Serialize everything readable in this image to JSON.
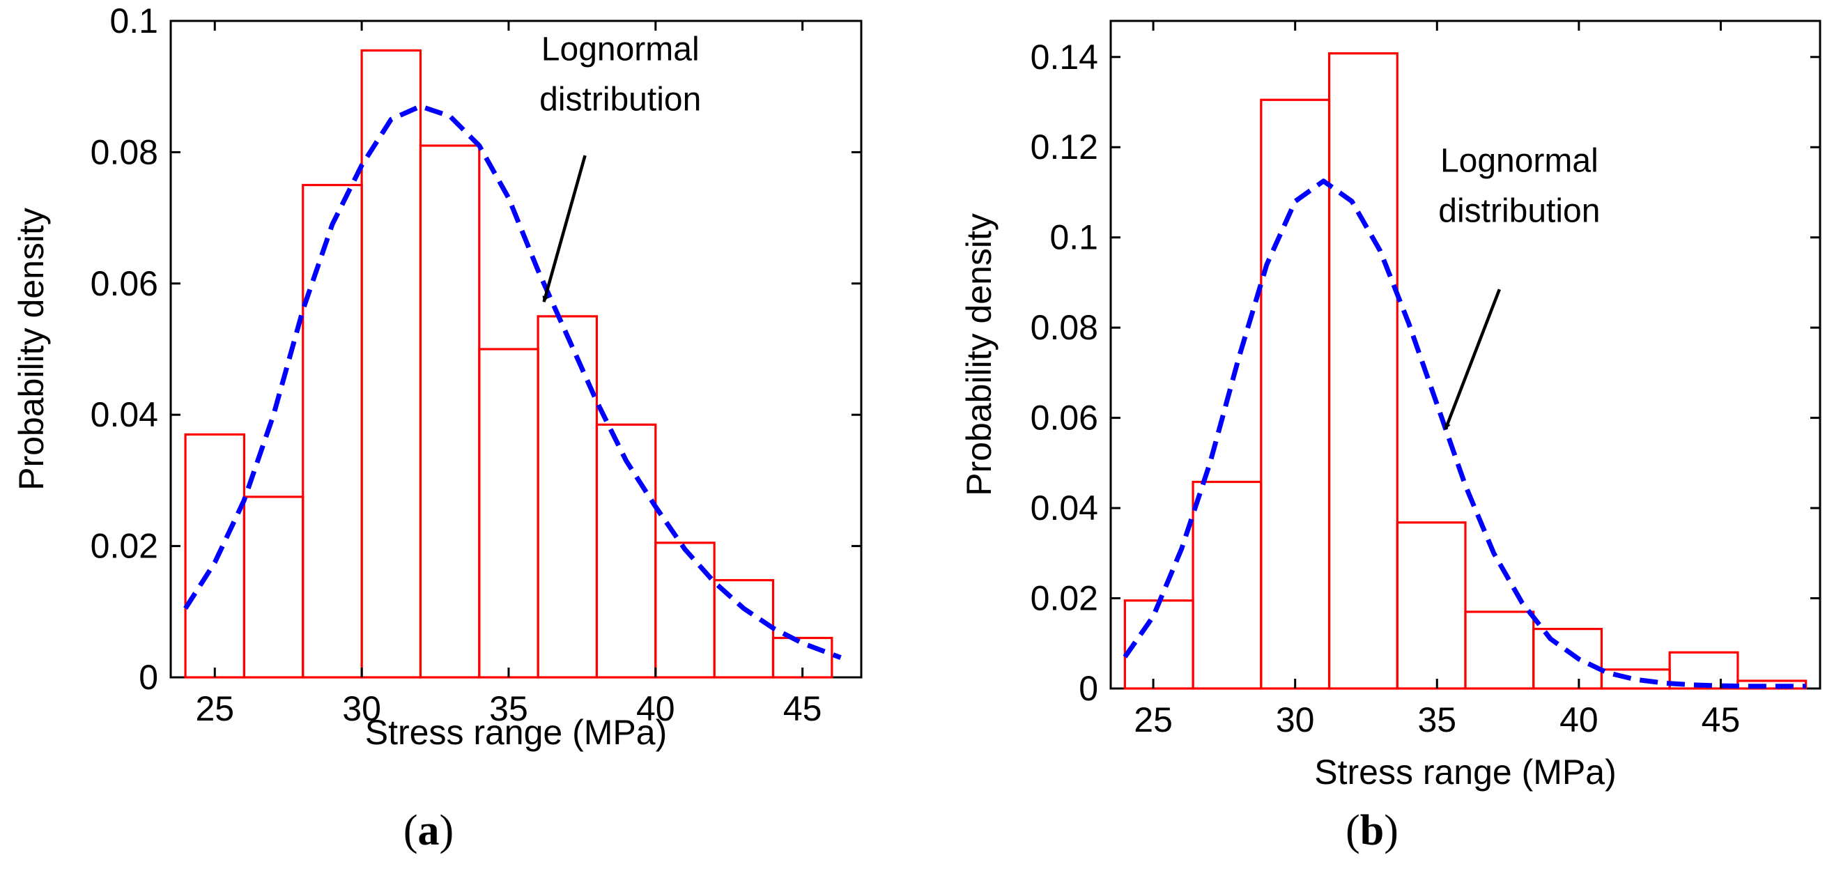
{
  "chart_data": [
    {
      "type": "bar",
      "subtitle": "a",
      "xlabel": "Stress range (MPa)",
      "ylabel": "Probability density",
      "bin_edges": [
        24,
        26,
        28,
        30,
        32,
        34,
        36,
        38,
        40,
        42,
        44,
        46
      ],
      "values": [
        0.037,
        0.0275,
        0.075,
        0.0955,
        0.081,
        0.05,
        0.055,
        0.0385,
        0.0205,
        0.0148,
        0.006
      ],
      "xlim": [
        23.5,
        47
      ],
      "ylim": [
        0,
        0.1
      ],
      "xticks": [
        25,
        30,
        35,
        40,
        45
      ],
      "xtick_labels": [
        "25",
        "30",
        "35",
        "40",
        "45"
      ],
      "yticks": [
        0,
        0.02,
        0.04,
        0.06,
        0.08,
        0.1
      ],
      "ytick_labels": [
        "0",
        "0.02",
        "0.04",
        "0.06",
        "0.08",
        "0.1"
      ],
      "curve": {
        "name": "Lognormal distribution",
        "x": [
          24,
          25,
          26,
          27,
          28,
          29,
          30,
          31,
          32,
          33,
          34,
          35,
          36,
          37,
          38,
          39,
          40,
          41,
          42,
          43,
          44,
          45,
          46.3
        ],
        "y": [
          0.0105,
          0.0175,
          0.027,
          0.04,
          0.056,
          0.069,
          0.078,
          0.085,
          0.087,
          0.0855,
          0.081,
          0.073,
          0.062,
          0.052,
          0.042,
          0.033,
          0.026,
          0.0195,
          0.0145,
          0.0105,
          0.0075,
          0.0052,
          0.003
        ]
      },
      "annotation": {
        "lines": [
          "Lognormal",
          "distribution"
        ],
        "text_x": 38.8,
        "text_y": 0.0885,
        "arrow_from": [
          37.6,
          0.0795
        ],
        "arrow_to": [
          36.2,
          0.0572
        ]
      }
    },
    {
      "type": "bar",
      "subtitle": "b",
      "xlabel": "Stress range (MPa)",
      "ylabel": "Probability density",
      "bin_edges": [
        24,
        26.4,
        28.8,
        31.2,
        33.6,
        36,
        38.4,
        40.8,
        43.2,
        45.6,
        48
      ],
      "values": [
        0.0195,
        0.0458,
        0.1305,
        0.1408,
        0.0368,
        0.017,
        0.0132,
        0.0042,
        0.008,
        0.0017
      ],
      "xlim": [
        23.5,
        48.5
      ],
      "ylim": [
        0,
        0.148
      ],
      "xticks": [
        25,
        30,
        35,
        40,
        45
      ],
      "xtick_labels": [
        "25",
        "30",
        "35",
        "40",
        "45"
      ],
      "yticks": [
        0,
        0.02,
        0.04,
        0.06,
        0.08,
        0.1,
        0.12,
        0.14
      ],
      "ytick_labels": [
        "0",
        "0.02",
        "0.04",
        "0.06",
        "0.08",
        "0.1",
        "0.12",
        "0.14"
      ],
      "curve": {
        "name": "Lognormal distribution",
        "x": [
          24,
          25,
          26,
          27,
          28,
          29,
          30,
          31,
          32,
          33,
          34,
          35,
          36,
          37,
          38,
          39,
          40,
          41,
          42,
          43,
          44,
          45,
          46,
          47,
          48
        ],
        "y": [
          0.007,
          0.016,
          0.031,
          0.05,
          0.073,
          0.094,
          0.108,
          0.1125,
          0.108,
          0.097,
          0.081,
          0.063,
          0.045,
          0.03,
          0.019,
          0.011,
          0.0065,
          0.0035,
          0.002,
          0.0012,
          0.0008,
          0.0006,
          0.0005,
          0.0005,
          0.0005
        ]
      },
      "annotation": {
        "lines": [
          "Lognormal",
          "distribution"
        ],
        "text_x": 37.9,
        "text_y": 0.1065,
        "arrow_from": [
          37.2,
          0.0885
        ],
        "arrow_to": [
          35.3,
          0.0575
        ]
      }
    }
  ]
}
